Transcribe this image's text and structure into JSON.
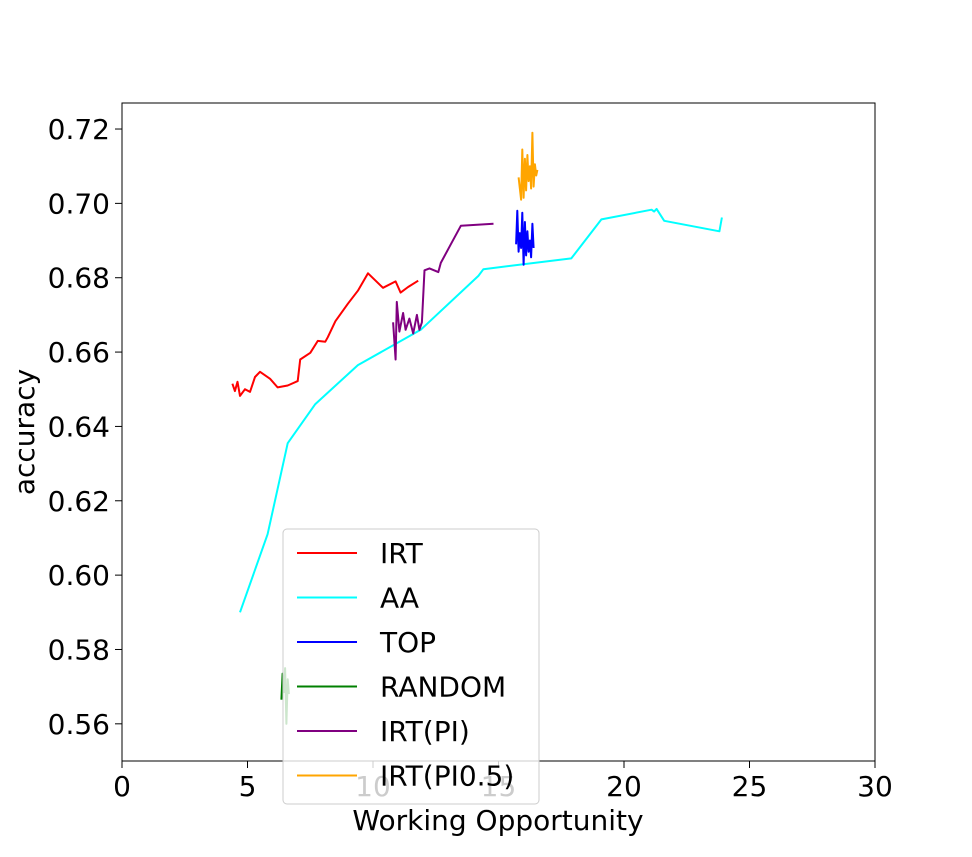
{
  "chart_data": {
    "type": "line",
    "title": "",
    "xlabel": "Working Opportunity",
    "ylabel": "accuracy",
    "xlim": [
      0,
      30
    ],
    "ylim": [
      0.55,
      0.727
    ],
    "xticks": [
      0,
      5,
      10,
      15,
      20,
      25,
      30
    ],
    "xtick_labels": [
      "0",
      "5",
      "10",
      "15",
      "20",
      "25",
      "30"
    ],
    "yticks": [
      0.56,
      0.58,
      0.6,
      0.62,
      0.64,
      0.66,
      0.68,
      0.7,
      0.72
    ],
    "ytick_labels": [
      "0.56",
      "0.58",
      "0.60",
      "0.62",
      "0.64",
      "0.66",
      "0.68",
      "0.70",
      "0.72"
    ],
    "grid": false,
    "legend_position": "lower-left",
    "series": [
      {
        "name": "IRT",
        "color": "#ff0000",
        "x": [
          4.4,
          4.5,
          4.6,
          4.7,
          4.9,
          5.1,
          5.3,
          5.5,
          5.9,
          6.2,
          6.6,
          7.0,
          7.1,
          7.5,
          7.8,
          8.1,
          8.2,
          8.5,
          9.0,
          9.4,
          9.8,
          10.4,
          10.9,
          11.1,
          11.4,
          11.8
        ],
        "y": [
          0.6515,
          0.6495,
          0.652,
          0.6482,
          0.65,
          0.6493,
          0.6533,
          0.6547,
          0.6528,
          0.6505,
          0.651,
          0.6522,
          0.658,
          0.6598,
          0.663,
          0.6628,
          0.664,
          0.6683,
          0.673,
          0.6765,
          0.6812,
          0.6773,
          0.679,
          0.676,
          0.6775,
          0.6792
        ]
      },
      {
        "name": "AA",
        "color": "#00ffff",
        "x": [
          4.7,
          5.8,
          6.6,
          7.7,
          9.4,
          11.9,
          14.2,
          14.4,
          17.9,
          19.1,
          21.1,
          21.2,
          21.3,
          21.6,
          23.8,
          23.9
        ],
        "y": [
          0.59,
          0.611,
          0.6355,
          0.646,
          0.6565,
          0.666,
          0.6805,
          0.6823,
          0.6852,
          0.6957,
          0.6983,
          0.6978,
          0.6985,
          0.6953,
          0.6925,
          0.6962
        ]
      },
      {
        "name": "TOP",
        "color": "#0000ff",
        "x": [
          15.7,
          15.75,
          15.8,
          15.85,
          15.9,
          15.95,
          16.0,
          16.05,
          16.1,
          16.15,
          16.2,
          16.25,
          16.3,
          16.35,
          16.4
        ],
        "y": [
          0.689,
          0.698,
          0.687,
          0.692,
          0.688,
          0.6975,
          0.6835,
          0.695,
          0.686,
          0.6925,
          0.687,
          0.69,
          0.6855,
          0.6945,
          0.688
        ]
      },
      {
        "name": "RANDOM",
        "color": "#008000",
        "x": [
          6.35,
          6.4,
          6.45,
          6.5,
          6.55,
          6.6,
          6.65
        ],
        "y": [
          0.5665,
          0.5735,
          0.5685,
          0.575,
          0.56,
          0.572,
          0.568
        ]
      },
      {
        "name": "IRT(PI)",
        "color": "#800080",
        "x": [
          10.8,
          10.9,
          10.95,
          11.05,
          11.2,
          11.3,
          11.45,
          11.6,
          11.75,
          11.85,
          11.95,
          12.05,
          12.25,
          12.6,
          12.7,
          13.1,
          13.5,
          14.8
        ],
        "y": [
          0.668,
          0.658,
          0.6735,
          0.6655,
          0.6705,
          0.666,
          0.669,
          0.665,
          0.67,
          0.666,
          0.668,
          0.682,
          0.6825,
          0.6815,
          0.684,
          0.689,
          0.694,
          0.6945
        ]
      },
      {
        "name": "IRT(PI0.5)",
        "color": "#ffa500",
        "x": [
          15.8,
          15.9,
          15.95,
          16.0,
          16.05,
          16.1,
          16.15,
          16.2,
          16.25,
          16.3,
          16.35,
          16.4,
          16.45,
          16.5,
          16.55
        ],
        "y": [
          0.707,
          0.701,
          0.7145,
          0.7015,
          0.712,
          0.7035,
          0.713,
          0.706,
          0.71,
          0.704,
          0.719,
          0.7045,
          0.7105,
          0.7075,
          0.709
        ]
      }
    ]
  }
}
